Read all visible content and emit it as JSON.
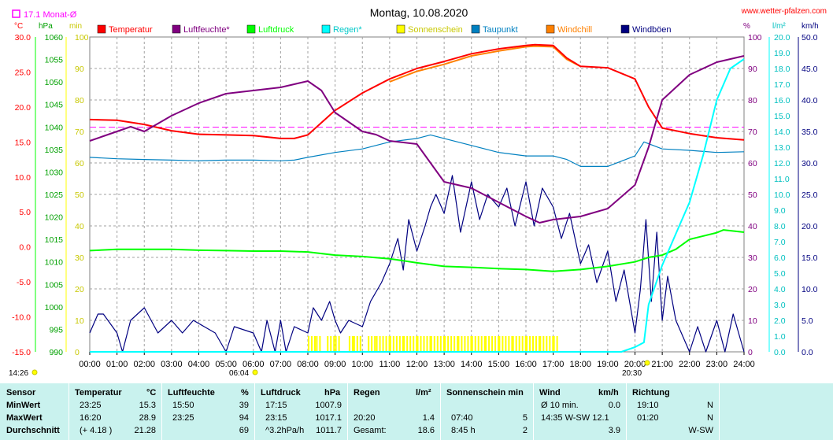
{
  "title": "Montag, 10.08.2020",
  "website": "www.wetter-pfalzen.com",
  "month_avg_label": "17.1 Monat-Ø",
  "colors": {
    "temp": "#ff0000",
    "hum": "#800080",
    "press": "#00ff00",
    "rain": "#00ffff",
    "sun": "#ffff00",
    "dew": "#0080c0",
    "chill": "#ff8000",
    "gust": "#000080",
    "monthavg": "#ff00ff",
    "header_left": "#ff0000",
    "axis_hpa": "#00a000",
    "axis_min": "#c8c800",
    "axis_pct": "#800080",
    "axis_rain": "#00c0c0",
    "axis_kmh": "#000080",
    "stats_bg": "#c9f2ee"
  },
  "legend": [
    {
      "label": "Temperatur",
      "color": "#ff0000"
    },
    {
      "label": "Luftfeuchte*",
      "color": "#800080"
    },
    {
      "label": "Luftdruck",
      "color": "#00ff00"
    },
    {
      "label": "Regen*",
      "color": "#00ffff"
    },
    {
      "label": "Sonnenschein",
      "color": "#ffff00"
    },
    {
      "label": "Taupunkt",
      "color": "#0080c0"
    },
    {
      "label": "Windchill",
      "color": "#ff8000"
    },
    {
      "label": "Windböen",
      "color": "#000080"
    }
  ],
  "axis_units": {
    "temp": "°C",
    "press": "hPa",
    "sun": "min",
    "hum": "%",
    "rain": "l/m²",
    "wind": "km/h"
  },
  "chart_data": {
    "type": "line",
    "x_range": [
      "00:00",
      "24:00"
    ],
    "x_ticks": [
      "00:00",
      "01:00",
      "02:00",
      "03:00",
      "04:00",
      "05:00",
      "06:00",
      "07:00",
      "08:00",
      "09:00",
      "10:00",
      "11:00",
      "12:00",
      "13:00",
      "14:00",
      "15:00",
      "16:00",
      "17:00",
      "18:00",
      "19:00",
      "20:00",
      "21:00",
      "22:00",
      "23:00",
      "24:00"
    ],
    "axes": {
      "temp": {
        "range": [
          -15,
          30
        ],
        "ticks": [
          "-15.0",
          "-10.0",
          "-5.0",
          "0.0",
          "5.0",
          "10.0",
          "15.0",
          "20.0",
          "25.0",
          "30.0"
        ]
      },
      "press": {
        "range": [
          990,
          1060
        ],
        "ticks": [
          "990",
          "995",
          "1000",
          "1005",
          "1010",
          "1015",
          "1020",
          "1025",
          "1030",
          "1035",
          "1040",
          "1045",
          "1050",
          "1055",
          "1060"
        ]
      },
      "sun": {
        "range": [
          0,
          100
        ],
        "ticks": [
          "0",
          "10",
          "20",
          "30",
          "40",
          "50",
          "60",
          "70",
          "80",
          "90",
          "100"
        ]
      },
      "hum": {
        "range": [
          0,
          100
        ],
        "ticks": [
          "0",
          "10",
          "20",
          "30",
          "40",
          "50",
          "60",
          "70",
          "80",
          "90",
          "100"
        ]
      },
      "rain": {
        "range": [
          0,
          20
        ],
        "ticks": [
          "0.0",
          "1.0",
          "2.0",
          "3.0",
          "4.0",
          "5.0",
          "6.0",
          "7.0",
          "8.0",
          "9.0",
          "10.0",
          "11.0",
          "12.0",
          "13.0",
          "14.0",
          "15.0",
          "16.0",
          "17.0",
          "18.0",
          "19.0",
          "20.0"
        ]
      },
      "wind": {
        "range": [
          0,
          50
        ],
        "ticks": [
          "0.0",
          "5.0",
          "10.0",
          "15.0",
          "20.0",
          "25.0",
          "30.0",
          "35.0",
          "40.0",
          "45.0",
          "50.0"
        ]
      }
    },
    "month_avg_temp": 17.1,
    "series": [
      {
        "name": "Temperatur",
        "axis": "temp",
        "x": [
          0,
          1,
          2,
          3,
          4,
          5,
          6,
          7,
          7.5,
          8,
          9,
          10,
          11,
          12,
          13,
          14,
          15,
          16,
          16.33,
          17,
          17.5,
          18,
          19,
          20,
          20.5,
          21,
          22,
          23,
          24
        ],
        "y": [
          18.2,
          18.1,
          17.5,
          16.6,
          16.1,
          16.0,
          15.9,
          15.5,
          15.5,
          16.0,
          19.5,
          22.0,
          24.0,
          25.5,
          26.5,
          27.6,
          28.3,
          28.8,
          28.9,
          28.8,
          27.0,
          25.8,
          25.6,
          24.0,
          20.0,
          17.0,
          16.2,
          15.6,
          15.3
        ]
      },
      {
        "name": "Windchill",
        "axis": "temp",
        "x": [
          11,
          12,
          13,
          14,
          15,
          16,
          16.33,
          17,
          17.5,
          18
        ],
        "y": [
          23.6,
          25.1,
          26.1,
          27.3,
          28.0,
          28.6,
          28.7,
          28.6,
          26.8,
          25.8
        ]
      },
      {
        "name": "Luftfeuchte*",
        "axis": "hum",
        "x": [
          0,
          0.5,
          1,
          1.5,
          2,
          2.5,
          3,
          4,
          5,
          6,
          7,
          7.5,
          8,
          8.5,
          9,
          10,
          10.5,
          11,
          12,
          13,
          14,
          15,
          16,
          16.5,
          17,
          18,
          19,
          20,
          20.5,
          21,
          22,
          23,
          24
        ],
        "y": [
          67.0,
          68.5,
          70.0,
          71.5,
          70.0,
          72.5,
          75.0,
          79.0,
          82.0,
          83.0,
          84.0,
          85.0,
          86.0,
          83.0,
          76.0,
          70.0,
          69.0,
          67.0,
          66.0,
          54.0,
          52.0,
          47.5,
          43.0,
          41.0,
          42.0,
          43.0,
          45.5,
          53.0,
          65.0,
          80.0,
          88.0,
          92.0,
          94.0
        ]
      },
      {
        "name": "Taupunkt",
        "axis": "temp",
        "x": [
          0,
          1,
          2,
          3,
          4,
          5,
          6,
          7,
          7.5,
          8,
          9,
          10,
          11,
          12,
          12.5,
          13,
          14,
          15,
          16,
          17,
          17.5,
          18,
          19,
          20,
          20.33,
          21,
          22,
          23,
          24
        ],
        "y": [
          12.8,
          12.6,
          12.5,
          12.4,
          12.3,
          12.4,
          12.4,
          12.3,
          12.4,
          12.8,
          13.5,
          14.0,
          15.0,
          15.5,
          16.0,
          15.5,
          14.5,
          13.5,
          13.0,
          13.0,
          12.5,
          11.5,
          11.5,
          13.0,
          15.0,
          14.0,
          13.8,
          13.5,
          13.6
        ]
      },
      {
        "name": "Luftdruck",
        "axis": "press",
        "x": [
          0,
          1,
          2,
          3,
          4,
          5,
          6,
          7,
          8,
          9,
          10,
          11,
          12,
          13,
          14,
          15,
          16,
          17,
          18,
          19,
          20,
          20.5,
          21,
          21.5,
          22,
          23,
          23.25,
          24
        ],
        "y": [
          1012.5,
          1012.8,
          1012.8,
          1012.8,
          1012.6,
          1012.5,
          1012.4,
          1012.4,
          1012.2,
          1011.5,
          1011.2,
          1010.7,
          1009.8,
          1009.0,
          1008.8,
          1008.5,
          1008.3,
          1007.9,
          1008.3,
          1009.0,
          1010.0,
          1011.0,
          1011.5,
          1012.8,
          1015.0,
          1016.5,
          1017.1,
          1016.6
        ]
      },
      {
        "name": "Regen*",
        "axis": "rain",
        "x": [
          0,
          19.5,
          20.0,
          20.33,
          20.5,
          21,
          21.5,
          22,
          22.5,
          23,
          23.5,
          24
        ],
        "y": [
          0,
          0,
          0.3,
          0.6,
          3.0,
          5.5,
          7.5,
          9.5,
          12.5,
          16.0,
          18.0,
          18.6
        ]
      },
      {
        "name": "Windböen",
        "axis": "wind",
        "x": [
          0,
          0.3,
          0.5,
          1.0,
          1.2,
          1.5,
          2.0,
          2.5,
          3.0,
          3.4,
          3.8,
          4.2,
          4.6,
          5.0,
          5.3,
          6.0,
          6.3,
          6.5,
          6.8,
          7.0,
          7.2,
          7.5,
          8.0,
          8.2,
          8.5,
          8.8,
          9.0,
          9.2,
          9.5,
          10.0,
          10.3,
          10.7,
          11.0,
          11.3,
          11.5,
          11.7,
          12.0,
          12.3,
          12.5,
          12.7,
          13.0,
          13.3,
          13.6,
          14.0,
          14.3,
          14.6,
          15.0,
          15.3,
          15.6,
          16.0,
          16.3,
          16.6,
          17.0,
          17.3,
          17.6,
          18.0,
          18.3,
          18.6,
          19.0,
          19.3,
          19.6,
          20.0,
          20.2,
          20.4,
          20.6,
          20.8,
          21.0,
          21.2,
          21.5,
          22.0,
          22.3,
          22.6,
          23.0,
          23.3,
          23.6,
          24.0
        ],
        "y": [
          3,
          6,
          6,
          3,
          0,
          5,
          7,
          3,
          5,
          3,
          5,
          4,
          3,
          0,
          4,
          3,
          0,
          5,
          0,
          5,
          0,
          4,
          3,
          7,
          5,
          8,
          5,
          3,
          5,
          4,
          8,
          11,
          14,
          18,
          13,
          21,
          16,
          20,
          23,
          25,
          22,
          28,
          19,
          27,
          21,
          25,
          23,
          26,
          20,
          27,
          20,
          26,
          23,
          18,
          22,
          14,
          17,
          11,
          16,
          8,
          13,
          3,
          10,
          21,
          8,
          19,
          5,
          12,
          5,
          0,
          4,
          0,
          5,
          0,
          6,
          0
        ]
      },
      {
        "name": "Sonnenschein",
        "axis": "sun",
        "x": [
          7.83,
          8.0,
          8.3,
          8.5,
          8.7,
          9.0,
          9.2,
          9.5,
          9.67,
          10.0,
          10.2,
          10.5,
          11.0,
          11.5,
          12.0,
          12.5,
          13.0,
          13.5,
          14.0,
          14.5,
          15.0,
          15.5,
          16.0,
          16.5,
          17.0,
          17.2
        ],
        "y": [
          0,
          5,
          5,
          0,
          5,
          5,
          0,
          5,
          5,
          0,
          5,
          5,
          5,
          5,
          5,
          5,
          5,
          5,
          5,
          5,
          5,
          5,
          5,
          5,
          5,
          0
        ]
      }
    ]
  },
  "time_markers": {
    "sunrise_left": "14:26",
    "sunrise": "06:04",
    "sunset": "20:30"
  },
  "stats": {
    "headers": {
      "sensor": "Sensor",
      "temp": "Temperatur",
      "temp_unit": "°C",
      "hum": "Luftfeuchte",
      "hum_unit": "%",
      "press": "Luftdruck",
      "press_unit": "hPa",
      "rain": "Regen",
      "rain_unit": "l/m²",
      "sun": "Sonnenschein min",
      "wind": "Wind",
      "wind_unit": "km/h",
      "dir": "Richtung"
    },
    "rows": [
      {
        "label": "MinWert",
        "temp_time": "23:25",
        "temp_val": "15.3",
        "hum_time": "15:50",
        "hum_val": "39",
        "press_time": "17:15",
        "press_val": "1007.9",
        "rain_time": "",
        "rain_val": "",
        "sun_time": "",
        "sun_val": "",
        "wind_time": "Ø 10 min.",
        "wind_val": "0.0",
        "dir_time": "19:10",
        "dir_val": "N"
      },
      {
        "label": "MaxWert",
        "temp_time": "16:20",
        "temp_val": "28.9",
        "hum_time": "23:25",
        "hum_val": "94",
        "press_time": "23:15",
        "press_val": "1017.1",
        "rain_time": "20:20",
        "rain_val": "1.4",
        "sun_time": "07:40",
        "sun_val": "5",
        "wind_time": "14:35   W-SW 12.1",
        "wind_val": "",
        "dir_time": "01:20",
        "dir_val": "N"
      },
      {
        "label": "Durchschnitt",
        "temp_time": "(+ 4.18 )",
        "temp_val": "21.28",
        "hum_time": "",
        "hum_val": "69",
        "press_time": "^3.2hPa/h",
        "press_val": "1011.7",
        "rain_time": "Gesamt:",
        "rain_val": "18.6",
        "sun_time": "8:45 h",
        "sun_val": "2",
        "wind_time": "",
        "wind_val": "3.9",
        "dir_time": "",
        "dir_val": "W-SW"
      }
    ]
  }
}
